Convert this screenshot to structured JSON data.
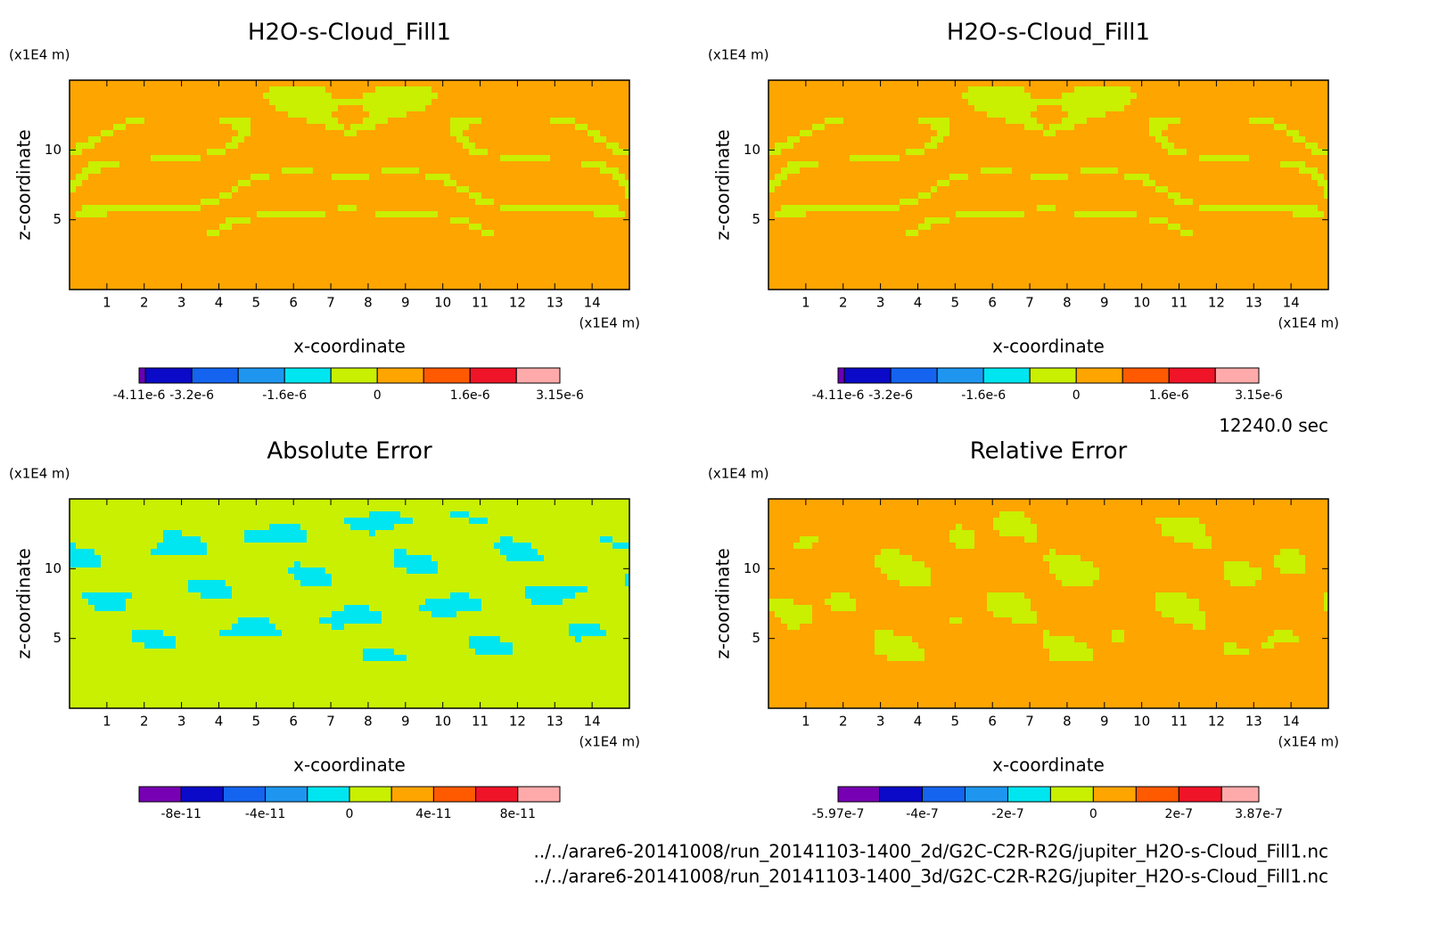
{
  "chart_data": [
    {
      "type": "contour",
      "title": "H2O-s-Cloud_Fill1",
      "xlabel": "x-coordinate",
      "ylabel": "z-coordinate",
      "x_unit": "(x1E4 m)",
      "y_unit": "(x1E4 m)",
      "xlim": [
        0,
        15
      ],
      "ylim": [
        0,
        15
      ],
      "xticks": [
        1,
        2,
        3,
        4,
        5,
        6,
        7,
        8,
        9,
        10,
        11,
        12,
        13,
        14
      ],
      "yticks": [
        5,
        10
      ],
      "colorbar": {
        "levels": [
          -4.11e-06,
          -4e-06,
          -3.2e-06,
          -2.4e-06,
          -1.6e-06,
          -8e-07,
          0,
          8e-07,
          1.6e-06,
          2.4e-06,
          3.15e-06
        ],
        "colors": [
          "#6a00b4",
          "#0a0ac8",
          "#1464f0",
          "#1e96f0",
          "#00e6f0",
          "#c8f000",
          "#ffa500",
          "#ff5a00",
          "#f01428",
          "#ffaaaa"
        ],
        "ticks": [
          {
            "value": -4.11e-06,
            "label": "-4.11e-6"
          },
          {
            "value": -3.2e-06,
            "label": "-3.2e-6"
          },
          {
            "value": -1.6e-06,
            "label": "-1.6e-6"
          },
          0,
          {
            "value": 1.6e-06,
            "label": "1.6e-6"
          },
          {
            "value": 3.15e-06,
            "label": "3.15e-6"
          }
        ]
      }
    },
    {
      "type": "contour",
      "title": "H2O-s-Cloud_Fill1",
      "xlabel": "x-coordinate",
      "ylabel": "z-coordinate",
      "x_unit": "(x1E4 m)",
      "y_unit": "(x1E4 m)",
      "xlim": [
        0,
        15
      ],
      "ylim": [
        0,
        15
      ],
      "xticks": [
        1,
        2,
        3,
        4,
        5,
        6,
        7,
        8,
        9,
        10,
        11,
        12,
        13,
        14
      ],
      "yticks": [
        5,
        10
      ],
      "colorbar": {
        "levels": [
          -4.11e-06,
          -4e-06,
          -3.2e-06,
          -2.4e-06,
          -1.6e-06,
          -8e-07,
          0,
          8e-07,
          1.6e-06,
          2.4e-06,
          3.15e-06
        ],
        "colors": [
          "#6a00b4",
          "#0a0ac8",
          "#1464f0",
          "#1e96f0",
          "#00e6f0",
          "#c8f000",
          "#ffa500",
          "#ff5a00",
          "#f01428",
          "#ffaaaa"
        ],
        "ticks": [
          {
            "value": -4.11e-06,
            "label": "-4.11e-6"
          },
          {
            "value": -3.2e-06,
            "label": "-3.2e-6"
          },
          {
            "value": -1.6e-06,
            "label": "-1.6e-6"
          },
          0,
          {
            "value": 1.6e-06,
            "label": "1.6e-6"
          },
          {
            "value": 3.15e-06,
            "label": "3.15e-6"
          }
        ]
      }
    },
    {
      "type": "contour",
      "title": "Absolute Error",
      "xlabel": "x-coordinate",
      "ylabel": "z-coordinate",
      "x_unit": "(x1E4 m)",
      "y_unit": "(x1E4 m)",
      "xlim": [
        0,
        15
      ],
      "ylim": [
        0,
        15
      ],
      "xticks": [
        1,
        2,
        3,
        4,
        5,
        6,
        7,
        8,
        9,
        10,
        11,
        12,
        13,
        14
      ],
      "yticks": [
        5,
        10
      ],
      "colorbar": {
        "levels": [
          -1e-10,
          -8e-11,
          -6e-11,
          -4e-11,
          -2e-11,
          0,
          2e-11,
          4e-11,
          6e-11,
          8e-11,
          1e-10
        ],
        "colors": [
          "#7800b4",
          "#0a0ac8",
          "#1464f0",
          "#1e96f0",
          "#00e6f0",
          "#c8f000",
          "#ffa500",
          "#ff5a00",
          "#f01428",
          "#ffaaaa"
        ],
        "ticks": [
          {
            "value": -8e-11,
            "label": "-8e-11"
          },
          {
            "value": -4e-11,
            "label": "-4e-11"
          },
          0,
          {
            "value": 4e-11,
            "label": "4e-11"
          },
          {
            "value": 8e-11,
            "label": "8e-11"
          }
        ]
      }
    },
    {
      "type": "contour",
      "title": "Relative Error",
      "xlabel": "x-coordinate",
      "ylabel": "z-coordinate",
      "x_unit": "(x1E4 m)",
      "y_unit": "(x1E4 m)",
      "xlim": [
        0,
        15
      ],
      "ylim": [
        0,
        15
      ],
      "xticks": [
        1,
        2,
        3,
        4,
        5,
        6,
        7,
        8,
        9,
        10,
        11,
        12,
        13,
        14
      ],
      "yticks": [
        5,
        10
      ],
      "colorbar": {
        "levels": [
          -5.97e-07,
          -5e-07,
          -4e-07,
          -3e-07,
          -2e-07,
          -1e-07,
          0,
          1e-07,
          2e-07,
          3e-07,
          3.87e-07
        ],
        "colors": [
          "#7800b4",
          "#0a0ac8",
          "#1464f0",
          "#1e96f0",
          "#00e6f0",
          "#c8f000",
          "#ffa500",
          "#ff5a00",
          "#f01428",
          "#ffaaaa"
        ],
        "ticks": [
          {
            "value": -5.97e-07,
            "label": "-5.97e-7"
          },
          {
            "value": -4e-07,
            "label": "-4e-7"
          },
          {
            "value": -2e-07,
            "label": "-2e-7"
          },
          0,
          {
            "value": 2e-07,
            "label": "2e-7"
          },
          {
            "value": 3.87e-07,
            "label": "3.87e-7"
          }
        ]
      }
    }
  ],
  "annotations": {
    "time": "12240.0 sec",
    "files": [
      "../../arare6-20141008/run_20141103-1400_2d/G2C-C2R-R2G/jupiter_H2O-s-Cloud_Fill1.nc",
      "../../arare6-20141008/run_20141103-1400_3d/G2C-C2R-R2G/jupiter_H2O-s-Cloud_Fill1.nc"
    ]
  }
}
